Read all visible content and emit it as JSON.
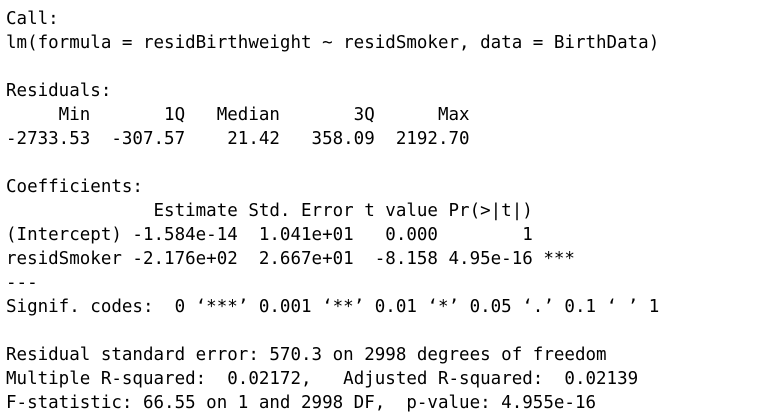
{
  "console": {
    "lines": [
      "Call:",
      "lm(formula = residBirthweight ~ residSmoker, data = BirthData)",
      "",
      "Residuals:",
      "     Min       1Q   Median       3Q      Max ",
      "-2733.53  -307.57    21.42   358.09  2192.70 ",
      "",
      "Coefficients:",
      "              Estimate Std. Error t value Pr(>|t|)    ",
      "(Intercept) -1.584e-14  1.041e+01   0.000        1    ",
      "residSmoker -2.176e+02  2.667e+01  -8.158 4.95e-16 ***",
      "---",
      "Signif. codes:  0 ‘***’ 0.001 ‘**’ 0.01 ‘*’ 0.05 ‘.’ 0.1 ‘ ’ 1",
      "",
      "Residual standard error: 570.3 on 2998 degrees of freedom",
      "Multiple R-squared:  0.02172,\tAdjusted R-squared:  0.02139 ",
      "F-statistic: 66.55 on 1 and 2998 DF,  p-value: 4.955e-16"
    ]
  }
}
